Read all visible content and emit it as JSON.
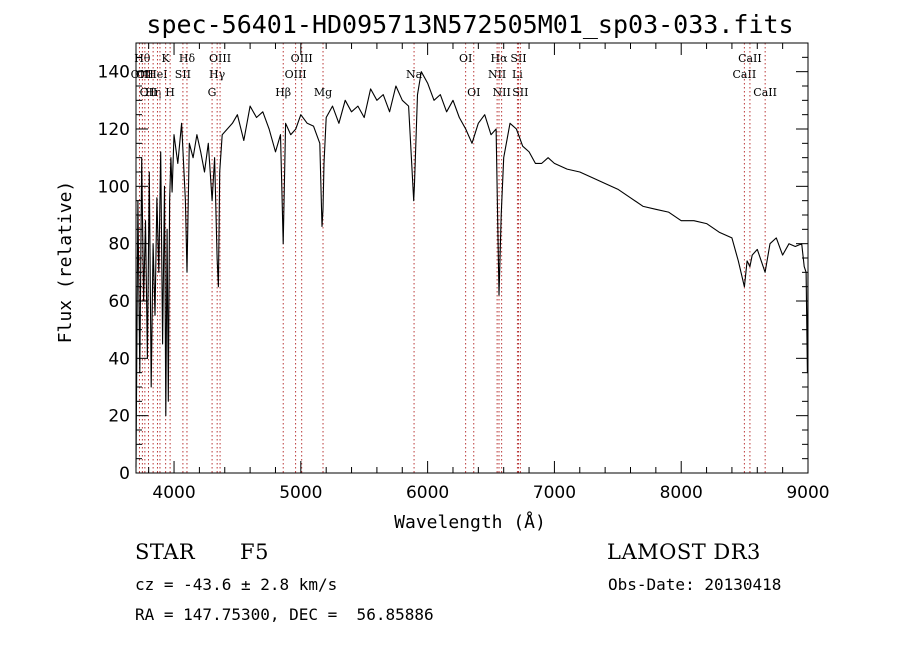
{
  "chart_data": {
    "type": "line",
    "title": "spec-56401-HD095713N572505M01_sp03-033.fits",
    "xlabel": "Wavelength (Å)",
    "ylabel": "Flux (relative)",
    "xlim": [
      3700,
      9000
    ],
    "ylim": [
      0,
      150
    ],
    "xticks": [
      4000,
      5000,
      6000,
      7000,
      8000,
      9000
    ],
    "yticks": [
      0,
      20,
      40,
      60,
      80,
      100,
      120,
      140
    ],
    "grid": false,
    "colors": {
      "spectrum": "#000000",
      "lines": "#b22222"
    },
    "series": [
      {
        "name": "spectrum",
        "x": [
          3700,
          3715,
          3730,
          3745,
          3760,
          3775,
          3790,
          3805,
          3820,
          3835,
          3850,
          3865,
          3880,
          3895,
          3910,
          3925,
          3935,
          3945,
          3955,
          3965,
          3975,
          3985,
          4000,
          4030,
          4060,
          4090,
          4102,
          4120,
          4150,
          4180,
          4210,
          4240,
          4270,
          4300,
          4320,
          4340,
          4350,
          4360,
          4380,
          4420,
          4460,
          4500,
          4550,
          4600,
          4650,
          4700,
          4750,
          4800,
          4840,
          4861,
          4880,
          4920,
          4960,
          5000,
          5050,
          5100,
          5150,
          5167,
          5175,
          5183,
          5200,
          5250,
          5300,
          5350,
          5400,
          5450,
          5500,
          5550,
          5600,
          5650,
          5700,
          5750,
          5800,
          5850,
          5890,
          5896,
          5920,
          5950,
          6000,
          6050,
          6100,
          6150,
          6200,
          6250,
          6300,
          6350,
          6400,
          6450,
          6500,
          6540,
          6563,
          6580,
          6600,
          6650,
          6700,
          6750,
          6800,
          6850,
          6900,
          6950,
          7000,
          7100,
          7200,
          7300,
          7400,
          7500,
          7600,
          7700,
          7800,
          7900,
          8000,
          8100,
          8200,
          8300,
          8400,
          8450,
          8498,
          8520,
          8542,
          8560,
          8600,
          8662,
          8700,
          8750,
          8800,
          8850,
          8900,
          8950,
          8970,
          8985,
          8995,
          9000
        ],
        "y": [
          2,
          95,
          35,
          110,
          60,
          88,
          40,
          105,
          30,
          80,
          55,
          96,
          70,
          112,
          45,
          100,
          20,
          85,
          25,
          95,
          110,
          98,
          118,
          108,
          122,
          95,
          70,
          115,
          110,
          118,
          112,
          105,
          115,
          95,
          110,
          75,
          65,
          105,
          118,
          120,
          122,
          125,
          116,
          128,
          124,
          126,
          120,
          112,
          118,
          80,
          122,
          118,
          120,
          125,
          122,
          121,
          115,
          86,
          92,
          108,
          124,
          128,
          122,
          130,
          126,
          128,
          124,
          134,
          130,
          132,
          126,
          135,
          130,
          128,
          95,
          100,
          132,
          140,
          136,
          130,
          132,
          126,
          130,
          124,
          120,
          115,
          122,
          125,
          118,
          120,
          62,
          90,
          110,
          122,
          120,
          114,
          112,
          108,
          108,
          110,
          108,
          106,
          105,
          103,
          101,
          99,
          96,
          93,
          92,
          91,
          88,
          88,
          87,
          84,
          82,
          74,
          65,
          74,
          72,
          76,
          78,
          70,
          80,
          82,
          76,
          80,
          79,
          80,
          72,
          70,
          35,
          70
        ]
      }
    ],
    "spectral_lines": [
      {
        "wavelength": 3727,
        "label": "OII",
        "row": 2
      },
      {
        "wavelength": 3750,
        "label": "Hθ",
        "row": 1
      },
      {
        "wavelength": 3770,
        "label": "OII",
        "row": 2
      },
      {
        "wavelength": 3798,
        "label": "OII",
        "row": 3
      },
      {
        "wavelength": 3835,
        "label": "Hη",
        "row": 3
      },
      {
        "wavelength": 3869,
        "label": "HeI",
        "row": 2
      },
      {
        "wavelength": 3889,
        "label": "",
        "row": 0
      },
      {
        "wavelength": 3934,
        "label": "K",
        "row": 1
      },
      {
        "wavelength": 3969,
        "label": "H",
        "row": 3
      },
      {
        "wavelength": 4070,
        "label": "SII",
        "row": 2
      },
      {
        "wavelength": 4102,
        "label": "Hδ",
        "row": 1
      },
      {
        "wavelength": 4300,
        "label": "G",
        "row": 3
      },
      {
        "wavelength": 4340,
        "label": "Hγ",
        "row": 2
      },
      {
        "wavelength": 4363,
        "label": "OIII",
        "row": 1
      },
      {
        "wavelength": 4861,
        "label": "Hβ",
        "row": 3
      },
      {
        "wavelength": 4959,
        "label": "OIII",
        "row": 2
      },
      {
        "wavelength": 5007,
        "label": "OIII",
        "row": 1
      },
      {
        "wavelength": 5175,
        "label": "Mg",
        "row": 3
      },
      {
        "wavelength": 5893,
        "label": "Na",
        "row": 2
      },
      {
        "wavelength": 6300,
        "label": "OI",
        "row": 1
      },
      {
        "wavelength": 6364,
        "label": "OI",
        "row": 3
      },
      {
        "wavelength": 6548,
        "label": "NII",
        "row": 2
      },
      {
        "wavelength": 6563,
        "label": "Hα",
        "row": 1
      },
      {
        "wavelength": 6584,
        "label": "NII",
        "row": 3
      },
      {
        "wavelength": 6708,
        "label": "Li",
        "row": 2
      },
      {
        "wavelength": 6717,
        "label": "SII",
        "row": 1
      },
      {
        "wavelength": 6731,
        "label": "SII",
        "row": 3
      },
      {
        "wavelength": 8498,
        "label": "CaII",
        "row": 2
      },
      {
        "wavelength": 8542,
        "label": "CaII",
        "row": 1
      },
      {
        "wavelength": 8662,
        "label": "CaII",
        "row": 3
      }
    ]
  },
  "info": {
    "object_class": "STAR",
    "subclass": "F5",
    "survey": "LAMOST DR3",
    "cz": "cz = -43.6 ± 2.8 km/s",
    "obs_date": "Obs-Date: 20130418",
    "coords": "RA = 147.75300, DEC =  56.85886"
  }
}
